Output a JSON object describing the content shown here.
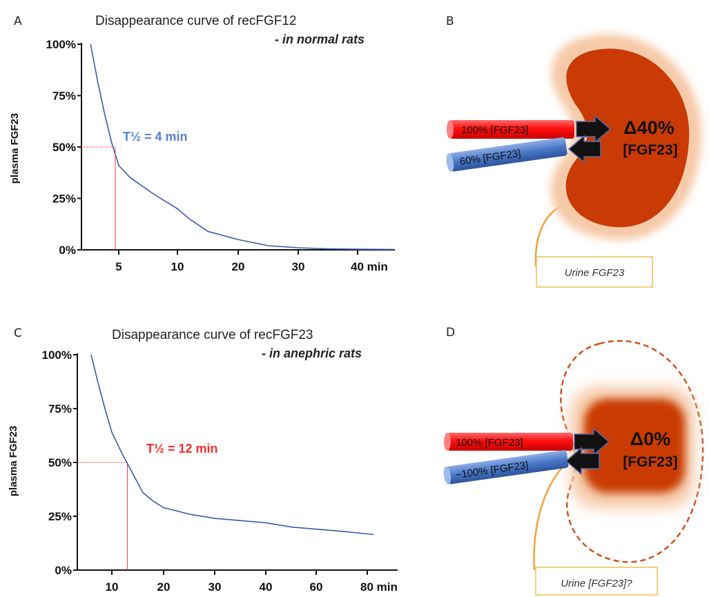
{
  "panels": {
    "A": {
      "letter": "A",
      "title": "Disappearance curve of recFGF12",
      "subtitle": "- in normal rats",
      "ylabel": "plasma FGF23",
      "half_life_label": "T½ = 4 min"
    },
    "B": {
      "letter": "B",
      "in_label": "100%  [FGF23]",
      "out_label": "60% [FGF23]",
      "delta": "Δ40%",
      "delta_sub": "[FGF23]",
      "urine_label": "Urine FGF23"
    },
    "C": {
      "letter": "C",
      "title": "Disappearance curve of recFGF23",
      "subtitle": "- in anephric rats",
      "ylabel": "plasma FGF23",
      "half_life_label": "T½ = 12 min"
    },
    "D": {
      "letter": "D",
      "in_label": "100%  [FGF23]",
      "out_label": "~100% [FGF23]",
      "delta": "Δ0%",
      "delta_sub": "[FGF23]",
      "urine_label": "Urine [FGF23]?"
    }
  },
  "colors": {
    "curve": "#3a5aa8",
    "guide": "#ff3b3b",
    "kidney": "#c93a05",
    "kidney_halo": "#f6c9a8",
    "artery": "#ff1a1a",
    "vein": "#4a78c8",
    "ureter": "#f5a040",
    "urine_box": "#f2c14e"
  },
  "chart_data": [
    {
      "type": "line",
      "title": "Disappearance curve of recFGF12",
      "subtitle": "- in normal rats",
      "xlabel": "min",
      "ylabel": "plasma FGF23",
      "x_ticks": [
        5,
        10,
        20,
        30,
        40
      ],
      "x_tick_labels": [
        "5",
        "10",
        "20",
        "30",
        "40 min"
      ],
      "y_ticks": [
        0,
        25,
        50,
        75,
        100
      ],
      "y_tick_labels": [
        "0%",
        "25%",
        "50%",
        "75%",
        "100%"
      ],
      "xlim": [
        0,
        46
      ],
      "ylim": [
        0,
        100
      ],
      "series": [
        {
          "x": [
            1,
            2,
            3,
            4,
            5,
            6,
            8,
            10,
            12,
            15,
            20,
            25,
            30,
            35,
            40,
            46
          ],
          "y": [
            100,
            82,
            66,
            52,
            41,
            35,
            27,
            20,
            15,
            9,
            5,
            2,
            1,
            0.5,
            0.3,
            0.2
          ]
        }
      ],
      "half_life": {
        "x": 4.5,
        "y": 50,
        "label": "T½ = 4 min"
      }
    },
    {
      "type": "line",
      "title": "Disappearance curve of recFGF23",
      "subtitle": "- in anephric rats",
      "xlabel": "min",
      "ylabel": "plasma FGF23",
      "x_ticks": [
        10,
        20,
        30,
        40,
        60,
        80
      ],
      "x_tick_labels": [
        "10",
        "20",
        "30",
        "40",
        "60",
        "80 min"
      ],
      "y_ticks": [
        0,
        25,
        50,
        75,
        100
      ],
      "y_tick_labels": [
        "0%",
        "25%",
        "50%",
        "75%",
        "100%"
      ],
      "series": [
        {
          "x": [
            4,
            6,
            8,
            10,
            12,
            14,
            16,
            18,
            20,
            25,
            30,
            40,
            50,
            60,
            70,
            82
          ],
          "y": [
            100,
            87,
            75,
            64,
            54,
            45,
            36,
            32,
            29,
            26,
            24,
            22,
            20,
            19,
            18,
            16.5
          ]
        }
      ],
      "half_life": {
        "x": 13,
        "y": 50,
        "label": "T½ = 12 min"
      }
    }
  ]
}
